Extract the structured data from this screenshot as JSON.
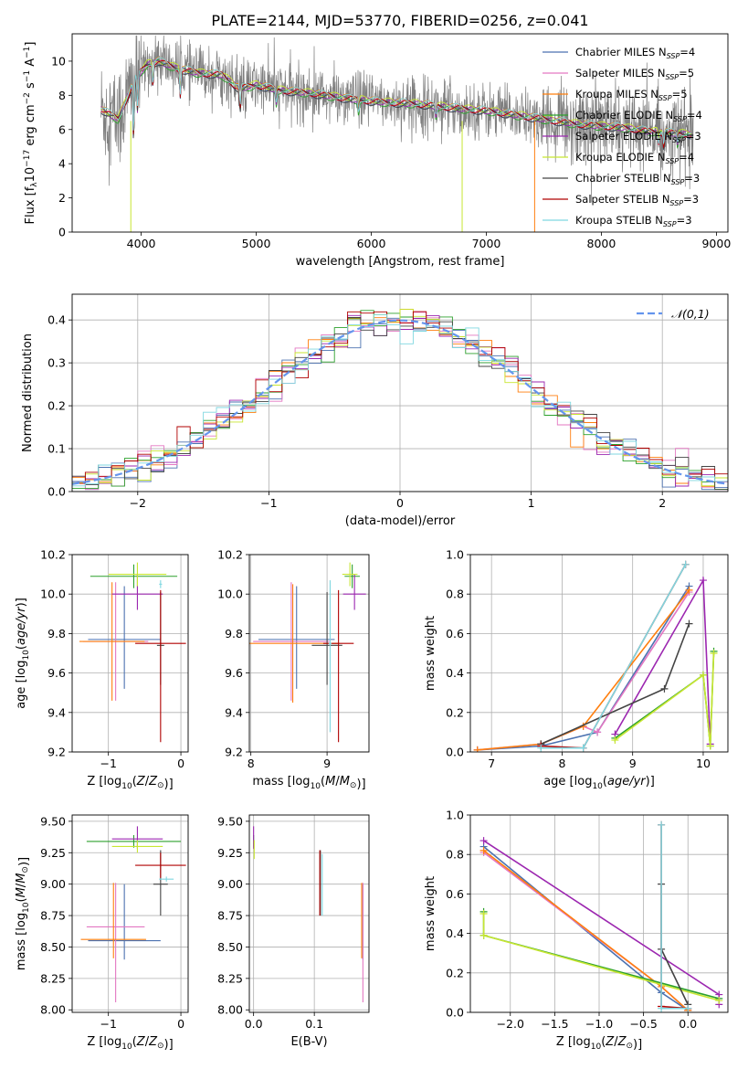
{
  "figure": {
    "title": "PLATE=2144, MJD=53770, FIBERID=0256, z=0.041"
  },
  "colors": {
    "Chabrier MILES": "#4c72b0",
    "Salpeter MILES": "#e377c2",
    "Kroupa MILES": "#ff7f0e",
    "Chabrier ELODIE": "#2ca02c",
    "Salpeter ELODIE": "#9c27b0",
    "Kroupa ELODIE": "#c8e632",
    "Chabrier STELIB": "#444444",
    "Salpeter STELIB": "#b00000",
    "Kroupa STELIB": "#7fd7e0",
    "data": "#7f7f7f",
    "normal": "#6495ed",
    "grid": "#b0b0b0"
  },
  "chart_data": [
    {
      "id": "spectrum",
      "type": "line",
      "title": "PLATE=2144, MJD=53770, FIBERID=0256, z=0.041",
      "xlabel": "wavelength [Angstrom, rest frame]",
      "ylabel": "Flux [f_λ10^-17 erg cm^-2 s^-1 A^-1]",
      "xlim": [
        3400,
        9100
      ],
      "ylim": [
        0,
        11.6
      ],
      "xticks": [
        4000,
        5000,
        6000,
        7000,
        8000,
        9000
      ],
      "yticks": [
        0,
        2,
        4,
        6,
        8,
        10
      ],
      "grid": false,
      "legend_position": "top-right",
      "legend": [
        {
          "model": "Chabrier MILES",
          "n_ssp": "4"
        },
        {
          "model": "Salpeter MILES",
          "n_ssp": "5"
        },
        {
          "model": "Kroupa MILES",
          "n_ssp": "5"
        },
        {
          "model": "Chabrier ELODIE",
          "n_ssp": "4"
        },
        {
          "model": "Salpeter ELODIE",
          "n_ssp": "3"
        },
        {
          "model": "Kroupa ELODIE",
          "n_ssp": "4"
        },
        {
          "model": "Chabrier STELIB",
          "n_ssp": "3"
        },
        {
          "model": "Salpeter STELIB",
          "n_ssp": "3"
        },
        {
          "model": "Kroupa STELIB",
          "n_ssp": "3"
        }
      ],
      "model_continuum": {
        "x": [
          3650,
          3800,
          3950,
          4050,
          4150,
          4300,
          4500,
          4700,
          4850,
          5000,
          5200,
          5500,
          5800,
          6100,
          6400,
          6800,
          7000,
          7200,
          7400,
          7600,
          7800,
          8000,
          8200,
          8400,
          8600,
          8800
        ],
        "y": [
          7.2,
          6.6,
          9.0,
          9.8,
          10.0,
          9.6,
          9.3,
          9.2,
          8.4,
          8.6,
          8.3,
          8.1,
          7.8,
          7.6,
          7.5,
          7.2,
          7.1,
          6.9,
          6.7,
          6.5,
          6.3,
          6.2,
          6.1,
          5.9,
          5.8,
          5.7
        ]
      }
    },
    {
      "id": "residuals",
      "type": "line",
      "xlabel": "(data-model)/error",
      "ylabel": "Normed distribution",
      "xlim": [
        -2.5,
        2.5
      ],
      "ylim": [
        0,
        0.46
      ],
      "xticks": [
        -2,
        -1,
        0,
        1,
        2
      ],
      "yticks": [
        0.0,
        0.1,
        0.2,
        0.3,
        0.4
      ],
      "grid": true,
      "legend_position": "top-right",
      "legend": [
        "𝒩(0,1)"
      ],
      "normal_curve": {
        "mean": 0,
        "sigma": 1
      },
      "bin_width": 0.1
    },
    {
      "id": "z-age",
      "type": "scatter",
      "xlabel": "Z [log10(Z/Z⊙)]",
      "ylabel": "age [log10(age/yr)]",
      "xlim": [
        -1.5,
        0.1
      ],
      "ylim": [
        9.2,
        10.2
      ],
      "xticks": [
        -1,
        0
      ],
      "yticks": [
        9.2,
        9.4,
        9.6,
        9.8,
        10.0,
        10.2
      ],
      "grid": true,
      "points": [
        {
          "model": "Chabrier MILES",
          "x": -0.78,
          "xerr": 0.5,
          "y": 9.77,
          "yerr": [
            0.25,
            0.27
          ]
        },
        {
          "model": "Salpeter MILES",
          "x": -0.9,
          "xerr": 0.45,
          "y": 9.76,
          "yerr": [
            0.3,
            0.3
          ]
        },
        {
          "model": "Kroupa MILES",
          "x": -0.95,
          "xerr": 0.45,
          "y": 9.76,
          "yerr": [
            0.3,
            0.3
          ]
        },
        {
          "model": "Chabrier ELODIE",
          "x": -0.65,
          "xerr": 0.6,
          "y": 10.09,
          "yerr": [
            0.06,
            0.06
          ]
        },
        {
          "model": "Salpeter ELODIE",
          "x": -0.6,
          "xerr": 0.35,
          "y": 10.0,
          "yerr": [
            0.08,
            0.1
          ]
        },
        {
          "model": "Kroupa ELODIE",
          "x": -0.6,
          "xerr": 0.4,
          "y": 10.1,
          "yerr": [
            0.06,
            0.06
          ]
        },
        {
          "model": "Chabrier STELIB",
          "x": -0.28,
          "xerr": 0.05,
          "y": 9.74,
          "yerr": [
            0.2,
            0.27
          ]
        },
        {
          "model": "Salpeter STELIB",
          "x": -0.28,
          "xerr": 0.35,
          "y": 9.75,
          "yerr": [
            0.5,
            0.27
          ]
        },
        {
          "model": "Kroupa STELIB",
          "x": -0.28,
          "xerr": 0.02,
          "y": 10.05,
          "yerr": [
            0.02,
            0.02
          ]
        }
      ]
    },
    {
      "id": "mass-age",
      "type": "scatter",
      "xlabel": "mass [log10(M/M⊙)]",
      "xlim": [
        7.98,
        9.55
      ],
      "ylim": [
        9.2,
        10.2
      ],
      "xticks": [
        8,
        9
      ],
      "yticks": [
        9.2,
        9.4,
        9.6,
        9.8,
        10.0,
        10.2
      ],
      "grid": true,
      "points": [
        {
          "model": "Chabrier MILES",
          "x": 8.6,
          "xerr": 0.5,
          "y": 9.77,
          "yerr": [
            0.25,
            0.27
          ]
        },
        {
          "model": "Salpeter MILES",
          "x": 8.53,
          "xerr": 0.5,
          "y": 9.76,
          "yerr": [
            0.3,
            0.3
          ]
        },
        {
          "model": "Kroupa MILES",
          "x": 8.55,
          "xerr": 0.6,
          "y": 9.75,
          "yerr": [
            0.3,
            0.3
          ]
        },
        {
          "model": "Chabrier ELODIE",
          "x": 9.33,
          "xerr": 0.1,
          "y": 10.09,
          "yerr": [
            0.06,
            0.06
          ]
        },
        {
          "model": "Salpeter ELODIE",
          "x": 9.36,
          "xerr": 0.15,
          "y": 10.0,
          "yerr": [
            0.08,
            0.1
          ]
        },
        {
          "model": "Kroupa ELODIE",
          "x": 9.3,
          "xerr": 0.1,
          "y": 10.1,
          "yerr": [
            0.06,
            0.06
          ]
        },
        {
          "model": "Chabrier STELIB",
          "x": 9.0,
          "xerr": 0.2,
          "y": 9.74,
          "yerr": [
            0.2,
            0.27
          ]
        },
        {
          "model": "Salpeter STELIB",
          "x": 9.15,
          "xerr": 0.2,
          "y": 9.75,
          "yerr": [
            0.5,
            0.27
          ]
        },
        {
          "model": "Kroupa STELIB",
          "x": 9.04,
          "xerr": 0.02,
          "y": 9.75,
          "yerr": [
            0.45,
            0.32
          ]
        }
      ]
    },
    {
      "id": "age-weight",
      "type": "line",
      "xlabel": "age [log10(age/yr)]",
      "ylabel": "mass weight",
      "xlim": [
        6.7,
        10.35
      ],
      "ylim": [
        0.0,
        1.0
      ],
      "xticks": [
        7,
        8,
        9,
        10
      ],
      "yticks": [
        0.0,
        0.2,
        0.4,
        0.6,
        0.8,
        1.0
      ],
      "grid": true,
      "series": [
        {
          "model": "Chabrier MILES",
          "x": [
            6.8,
            7.7,
            8.5,
            9.8
          ],
          "y": [
            0.01,
            0.03,
            0.1,
            0.84
          ]
        },
        {
          "model": "Salpeter MILES",
          "x": [
            6.8,
            7.7,
            8.3,
            8.5,
            9.8
          ],
          "y": [
            0.01,
            0.04,
            0.13,
            0.1,
            0.81
          ]
        },
        {
          "model": "Kroupa MILES",
          "x": [
            6.8,
            7.7,
            8.3,
            9.8
          ],
          "y": [
            0.01,
            0.04,
            0.13,
            0.82
          ]
        },
        {
          "model": "Chabrier ELODIE",
          "x": [
            8.75,
            10.0,
            10.1,
            10.15
          ],
          "y": [
            0.07,
            0.39,
            0.03,
            0.51
          ]
        },
        {
          "model": "Salpeter ELODIE",
          "x": [
            8.75,
            10.0,
            10.1
          ],
          "y": [
            0.09,
            0.87,
            0.04
          ]
        },
        {
          "model": "Kroupa ELODIE",
          "x": [
            8.75,
            10.0,
            10.1,
            10.15
          ],
          "y": [
            0.06,
            0.39,
            0.03,
            0.5
          ]
        },
        {
          "model": "Chabrier STELIB",
          "x": [
            7.7,
            9.45,
            9.8
          ],
          "y": [
            0.04,
            0.32,
            0.65
          ]
        },
        {
          "model": "Salpeter STELIB",
          "x": [
            7.7,
            8.3,
            9.75
          ],
          "y": [
            0.03,
            0.02,
            0.95
          ]
        },
        {
          "model": "Kroupa STELIB",
          "x": [
            7.7,
            8.3,
            9.75
          ],
          "y": [
            0.02,
            0.02,
            0.95
          ]
        }
      ]
    },
    {
      "id": "z-mass",
      "type": "scatter",
      "xlabel": "Z [log10(Z/Z⊙)]",
      "ylabel": "mass [log10(M/M⊙)]",
      "xlim": [
        -1.5,
        0.1
      ],
      "ylim": [
        7.98,
        9.55
      ],
      "xticks": [
        -1,
        0
      ],
      "yticks": [
        8.0,
        8.25,
        8.5,
        8.75,
        9.0,
        9.25,
        9.5
      ],
      "grid": true,
      "points": [
        {
          "model": "Chabrier MILES",
          "x": -0.78,
          "xerr": 0.5,
          "y": 8.55,
          "yerr": [
            0.15,
            0.45
          ]
        },
        {
          "model": "Salpeter MILES",
          "x": -0.9,
          "xerr": 0.4,
          "y": 8.66,
          "yerr": [
            0.6,
            0.35
          ]
        },
        {
          "model": "Kroupa MILES",
          "x": -0.93,
          "xerr": 0.45,
          "y": 8.56,
          "yerr": [
            0.15,
            0.45
          ]
        },
        {
          "model": "Chabrier ELODIE",
          "x": -0.65,
          "xerr": 0.65,
          "y": 9.34,
          "yerr": [
            0.05,
            0.05
          ]
        },
        {
          "model": "Salpeter ELODIE",
          "x": -0.6,
          "xerr": 0.35,
          "y": 9.36,
          "yerr": [
            0.08,
            0.1
          ]
        },
        {
          "model": "Kroupa ELODIE",
          "x": -0.6,
          "xerr": 0.35,
          "y": 9.3,
          "yerr": [
            0.05,
            0.05
          ]
        },
        {
          "model": "Chabrier STELIB",
          "x": -0.28,
          "xerr": 0.1,
          "y": 9.0,
          "yerr": [
            0.25,
            0.27
          ]
        },
        {
          "model": "Salpeter STELIB",
          "x": -0.28,
          "xerr": 0.35,
          "y": 9.15,
          "yerr": [
            0.1,
            0.1
          ]
        },
        {
          "model": "Kroupa STELIB",
          "x": -0.2,
          "xerr": 0.1,
          "y": 9.04,
          "yerr": [
            0.02,
            0.02
          ]
        }
      ]
    },
    {
      "id": "ebv-mass",
      "type": "scatter",
      "xlabel": "E(B-V)",
      "xlim": [
        -0.007,
        0.19
      ],
      "ylim": [
        7.98,
        9.55
      ],
      "xticks": [
        0.0,
        0.1
      ],
      "yticks": [
        8.0,
        8.25,
        8.5,
        8.75,
        9.0,
        9.25,
        9.5
      ],
      "grid": true,
      "points": [
        {
          "model": "Chabrier MILES",
          "x": 0.18,
          "xerr": 0,
          "y": 8.55,
          "yerr": [
            0.15,
            0.45
          ]
        },
        {
          "model": "Salpeter MILES",
          "x": 0.18,
          "xerr": 0,
          "y": 8.66,
          "yerr": [
            0.6,
            0.35
          ]
        },
        {
          "model": "Kroupa MILES",
          "x": 0.178,
          "xerr": 0,
          "y": 8.56,
          "yerr": [
            0.15,
            0.45
          ]
        },
        {
          "model": "Chabrier ELODIE",
          "x": 0.0,
          "xerr": 0,
          "y": 9.34,
          "yerr": [
            0.05,
            0.05
          ]
        },
        {
          "model": "Salpeter ELODIE",
          "x": 0.0,
          "xerr": 0,
          "y": 9.36,
          "yerr": [
            0.08,
            0.1
          ]
        },
        {
          "model": "Kroupa ELODIE",
          "x": 0.001,
          "xerr": 0,
          "y": 9.3,
          "yerr": [
            0.1,
            0.05
          ]
        },
        {
          "model": "Chabrier STELIB",
          "x": 0.11,
          "xerr": 0,
          "y": 9.0,
          "yerr": [
            0.25,
            0.27
          ]
        },
        {
          "model": "Salpeter STELIB",
          "x": 0.109,
          "xerr": 0,
          "y": 9.0,
          "yerr": [
            0.25,
            0.27
          ]
        },
        {
          "model": "Kroupa STELIB",
          "x": 0.113,
          "xerr": 0,
          "y": 9.0,
          "yerr": [
            0.25,
            0.24
          ]
        }
      ]
    },
    {
      "id": "z-weight",
      "type": "line",
      "xlabel": "Z [log10(Z/Z⊙)]",
      "ylabel": "mass weight",
      "xlim": [
        -2.45,
        0.45
      ],
      "ylim": [
        0.0,
        1.0
      ],
      "xticks": [
        -2.0,
        -1.5,
        -1.0,
        -0.5,
        0.0
      ],
      "yticks": [
        0.0,
        0.2,
        0.4,
        0.6,
        0.8,
        1.0
      ],
      "grid": true,
      "series": [
        {
          "model": "Chabrier MILES",
          "x": [
            -2.3,
            -0.3,
            0.0
          ],
          "y": [
            0.84,
            0.1,
            0.01
          ]
        },
        {
          "model": "Salpeter MILES",
          "x": [
            -2.3,
            -0.3,
            0.0
          ],
          "y": [
            0.81,
            0.13,
            0.01
          ]
        },
        {
          "model": "Kroupa MILES",
          "x": [
            -2.3,
            -0.3,
            0.0
          ],
          "y": [
            0.82,
            0.13,
            0.01
          ]
        },
        {
          "model": "Chabrier ELODIE",
          "x": [
            -2.3,
            -2.3,
            0.35
          ],
          "y": [
            0.51,
            0.39,
            0.07
          ]
        },
        {
          "model": "Salpeter ELODIE",
          "x": [
            -2.3,
            0.35,
            0.35
          ],
          "y": [
            0.87,
            0.09,
            0.04
          ]
        },
        {
          "model": "Kroupa ELODIE",
          "x": [
            -2.3,
            -2.3,
            0.35
          ],
          "y": [
            0.5,
            0.39,
            0.06
          ]
        },
        {
          "model": "Chabrier STELIB",
          "x": [
            -0.3,
            -0.3,
            0.0
          ],
          "y": [
            0.65,
            0.32,
            0.04
          ]
        },
        {
          "model": "Salpeter STELIB",
          "x": [
            -0.3,
            -0.3,
            0.0
          ],
          "y": [
            0.95,
            0.03,
            0.02
          ]
        },
        {
          "model": "Kroupa STELIB",
          "x": [
            -0.3,
            -0.3,
            0.0
          ],
          "y": [
            0.95,
            0.02,
            0.02
          ]
        }
      ]
    }
  ]
}
